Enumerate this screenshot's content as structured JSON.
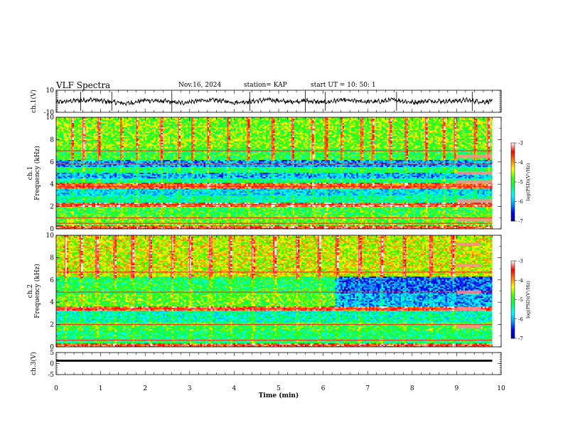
{
  "header": {
    "title": "VLF Spectra",
    "date": "Nov.16, 2024",
    "station": "station= KAP",
    "start": "start  UT =   10: 50: 1"
  },
  "chart_data": [
    {
      "type": "line",
      "name": "ch1-waveform",
      "ylabel": "ch.1(V)",
      "ylim": [
        -10,
        10
      ],
      "yticks": [
        "10",
        "-10"
      ],
      "x": [
        0,
        0.4,
        0.8,
        1.2,
        1.6,
        2.0,
        2.4,
        2.8,
        3.2,
        3.6,
        4.0,
        4.4,
        4.8,
        5.2,
        5.6,
        6.0,
        6.4,
        6.8,
        7.2,
        7.6,
        8.0,
        8.4,
        8.8,
        9.2,
        9.6,
        9.8
      ],
      "values": [
        -1,
        0.5,
        1.5,
        -0.5,
        -2,
        1,
        0,
        -1.5,
        0.5,
        1,
        -1,
        0,
        1.5,
        -0.5,
        0.5,
        -1,
        1,
        0,
        -0.5,
        1.5,
        -1,
        0.5,
        0,
        1,
        -0.5,
        0.5
      ],
      "noise_amplitude": 3.5
    },
    {
      "type": "heatmap",
      "name": "ch1-spectrogram",
      "ylabel": "ch.1\nFrequency (kHz)",
      "ylim": [
        0,
        10
      ],
      "yticks": [
        "0",
        "2",
        "4",
        "6",
        "8",
        "10"
      ],
      "colorbar": {
        "label": "log(PSD)(V²/Hz)",
        "range": [
          -7,
          -3
        ],
        "ticks": [
          "-3",
          "-4",
          "-5",
          "-6",
          "-7"
        ]
      },
      "bands": [
        {
          "f0": 0.0,
          "f1": 0.3,
          "level": -3.6
        },
        {
          "f0": 0.3,
          "f1": 1.2,
          "level": -4.8
        },
        {
          "f0": 1.2,
          "f1": 2.0,
          "level": -5.0
        },
        {
          "f0": 2.0,
          "f1": 2.3,
          "level": -3.5
        },
        {
          "f0": 2.3,
          "f1": 3.0,
          "level": -5.4
        },
        {
          "f0": 3.0,
          "f1": 3.6,
          "level": -5.8
        },
        {
          "f0": 3.6,
          "f1": 4.1,
          "level": -3.7
        },
        {
          "f0": 4.1,
          "f1": 4.5,
          "level": -5.3
        },
        {
          "f0": 4.5,
          "f1": 5.0,
          "level": -6.0
        },
        {
          "f0": 5.0,
          "f1": 5.6,
          "level": -5.2
        },
        {
          "f0": 5.6,
          "f1": 6.2,
          "level": -6.1
        },
        {
          "f0": 6.2,
          "f1": 7.2,
          "level": -5.0
        },
        {
          "f0": 7.2,
          "f1": 10.0,
          "level": -4.7
        }
      ],
      "lines_khz": [
        0.5,
        1.0,
        2.2,
        3.8,
        5.8,
        7.0
      ],
      "bursts_min": [
        0.35,
        0.6,
        0.95,
        1.45,
        1.8,
        2.35,
        2.75,
        3.05,
        3.4,
        3.85,
        4.3,
        4.85,
        5.3,
        5.75,
        6.05,
        6.4,
        6.85,
        7.1,
        7.5,
        7.85,
        8.3,
        8.7,
        8.95,
        9.4,
        9.7
      ],
      "tone_block": {
        "t0": 9.0,
        "t1": 9.8,
        "f": [
          6.5,
          5.0,
          4.2,
          2.5,
          0.8
        ]
      }
    },
    {
      "type": "heatmap",
      "name": "ch2-spectrogram",
      "ylabel": "ch.2\nFrequency (kHz)",
      "ylim": [
        0,
        10
      ],
      "yticks": [
        "0",
        "2",
        "4",
        "6",
        "8",
        "10"
      ],
      "colorbar": {
        "label": "log(PSD)(V²/Hz)",
        "range": [
          -7,
          -3
        ],
        "ticks": [
          "-3",
          "-4",
          "-5",
          "-6",
          "-7"
        ]
      },
      "bands": [
        {
          "f0": 0.0,
          "f1": 0.3,
          "level": -3.6
        },
        {
          "f0": 0.3,
          "f1": 1.5,
          "level": -5.2
        },
        {
          "f0": 1.5,
          "f1": 2.2,
          "level": -5.0
        },
        {
          "f0": 2.2,
          "f1": 3.2,
          "level": -5.5
        },
        {
          "f0": 3.2,
          "f1": 3.6,
          "level": -3.6
        },
        {
          "f0": 3.6,
          "f1": 4.8,
          "level": -4.8
        },
        {
          "f0": 4.8,
          "f1": 6.3,
          "level": -5.1
        },
        {
          "f0": 6.3,
          "f1": 10.0,
          "level": -4.4
        }
      ],
      "shift_min": 6.25,
      "lines_khz": [
        0.6,
        2.0,
        3.4,
        4.9,
        6.7
      ],
      "bursts_min": [
        0.2,
        0.55,
        0.9,
        1.3,
        1.7,
        2.1,
        2.6,
        3.0,
        3.45,
        3.9,
        4.4,
        4.9,
        5.4,
        5.9,
        6.3,
        6.8,
        7.3,
        7.8,
        8.4,
        8.9
      ],
      "tone_block": {
        "t0": 9.0,
        "t1": 9.55,
        "f": [
          9.2,
          7.3,
          4.9,
          3.4,
          1.8
        ]
      }
    },
    {
      "type": "line",
      "name": "ch3-waveform",
      "ylabel": "ch.3(V)",
      "ylim": [
        -5,
        5
      ],
      "yticks": [
        "5",
        "0",
        "-5"
      ],
      "x": [
        0,
        9.8
      ],
      "values": [
        1.3,
        1.3
      ],
      "band_halfwidth": 0.45
    }
  ],
  "xaxis": {
    "label": "Time (min)",
    "xlim": [
      0,
      10
    ],
    "ticks": [
      "0",
      "1",
      "2",
      "3",
      "4",
      "5",
      "6",
      "7",
      "8",
      "9",
      "10"
    ],
    "data_end": 9.8
  },
  "colors": {
    "colormap": [
      "#000090",
      "#0000ff",
      "#00a0ff",
      "#00ffff",
      "#00ff60",
      "#40ff00",
      "#ffff00",
      "#ff8000",
      "#ff0000",
      "#ffffff"
    ]
  }
}
